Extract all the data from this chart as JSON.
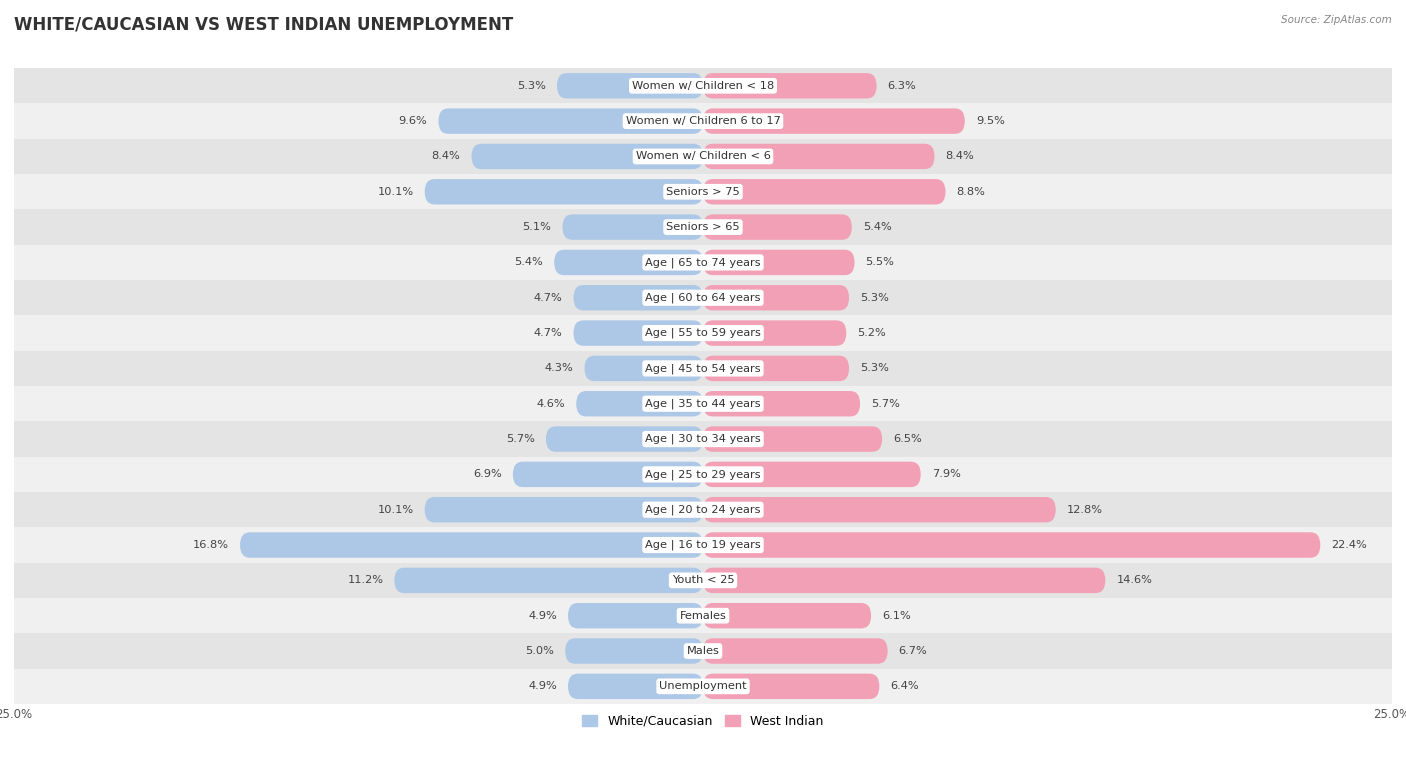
{
  "title": "WHITE/CAUCASIAN VS WEST INDIAN UNEMPLOYMENT",
  "source": "Source: ZipAtlas.com",
  "categories": [
    "Unemployment",
    "Males",
    "Females",
    "Youth < 25",
    "Age | 16 to 19 years",
    "Age | 20 to 24 years",
    "Age | 25 to 29 years",
    "Age | 30 to 34 years",
    "Age | 35 to 44 years",
    "Age | 45 to 54 years",
    "Age | 55 to 59 years",
    "Age | 60 to 64 years",
    "Age | 65 to 74 years",
    "Seniors > 65",
    "Seniors > 75",
    "Women w/ Children < 6",
    "Women w/ Children 6 to 17",
    "Women w/ Children < 18"
  ],
  "white_values": [
    4.9,
    5.0,
    4.9,
    11.2,
    16.8,
    10.1,
    6.9,
    5.7,
    4.6,
    4.3,
    4.7,
    4.7,
    5.4,
    5.1,
    10.1,
    8.4,
    9.6,
    5.3
  ],
  "west_indian_values": [
    6.4,
    6.7,
    6.1,
    14.6,
    22.4,
    12.8,
    7.9,
    6.5,
    5.7,
    5.3,
    5.2,
    5.3,
    5.5,
    5.4,
    8.8,
    8.4,
    9.5,
    6.3
  ],
  "white_color": "#adc8e6",
  "west_indian_color": "#f2a0b5",
  "axis_max": 25.0,
  "row_bg_light": "#f0f0f0",
  "row_bg_dark": "#e4e4e4",
  "bar_height": 0.72,
  "title_fontsize": 12,
  "label_fontsize": 8.2,
  "value_fontsize": 8.2,
  "legend_fontsize": 9,
  "axis_label_fontsize": 8.5
}
